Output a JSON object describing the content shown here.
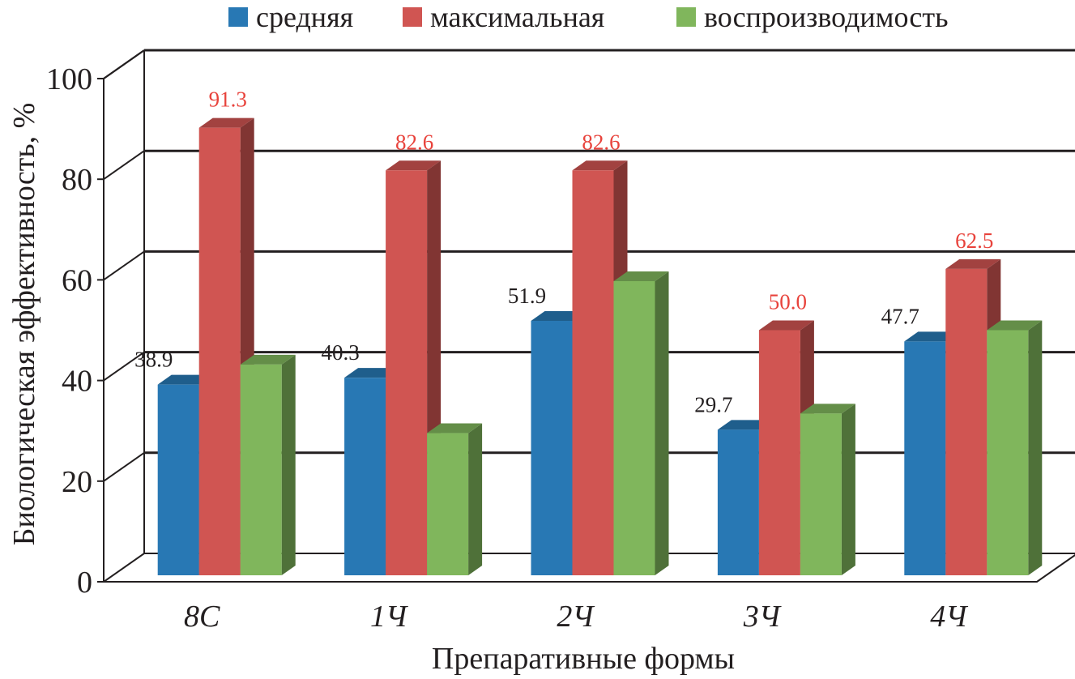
{
  "chart_data": {
    "type": "bar",
    "style": "3d-clustered",
    "categories": [
      "8С",
      "1Ч",
      "2Ч",
      "3Ч",
      "4Ч"
    ],
    "series": [
      {
        "name": "средняя",
        "color": "#2878b4",
        "values": [
          38.9,
          40.3,
          51.9,
          29.7,
          47.7
        ],
        "labels": [
          "38.9",
          "40.3",
          "51.9",
          "29.7",
          "47.7"
        ]
      },
      {
        "name": "максимальная",
        "color": "#d05552",
        "values": [
          91.3,
          82.6,
          82.6,
          50.0,
          62.5
        ],
        "labels": [
          "91.3",
          "82.6",
          "82.6",
          "50.0",
          "62.5"
        ]
      },
      {
        "name": "воспроизводимость",
        "color": "#80b65c",
        "values": [
          43.0,
          29.0,
          60.0,
          33.0,
          50.0
        ],
        "labels": [
          "",
          "",
          "",
          "",
          ""
        ]
      }
    ],
    "label_colors": [
      "#231f20",
      "#e8433c",
      "#231f20"
    ],
    "xlabel": "Препаративные формы",
    "ylabel": "Биологическая эффективность, %",
    "ylim": [
      0,
      100
    ],
    "yticks": [
      "0",
      "20",
      "40",
      "60",
      "80",
      "100"
    ],
    "grid": true,
    "legend_position": "top"
  }
}
